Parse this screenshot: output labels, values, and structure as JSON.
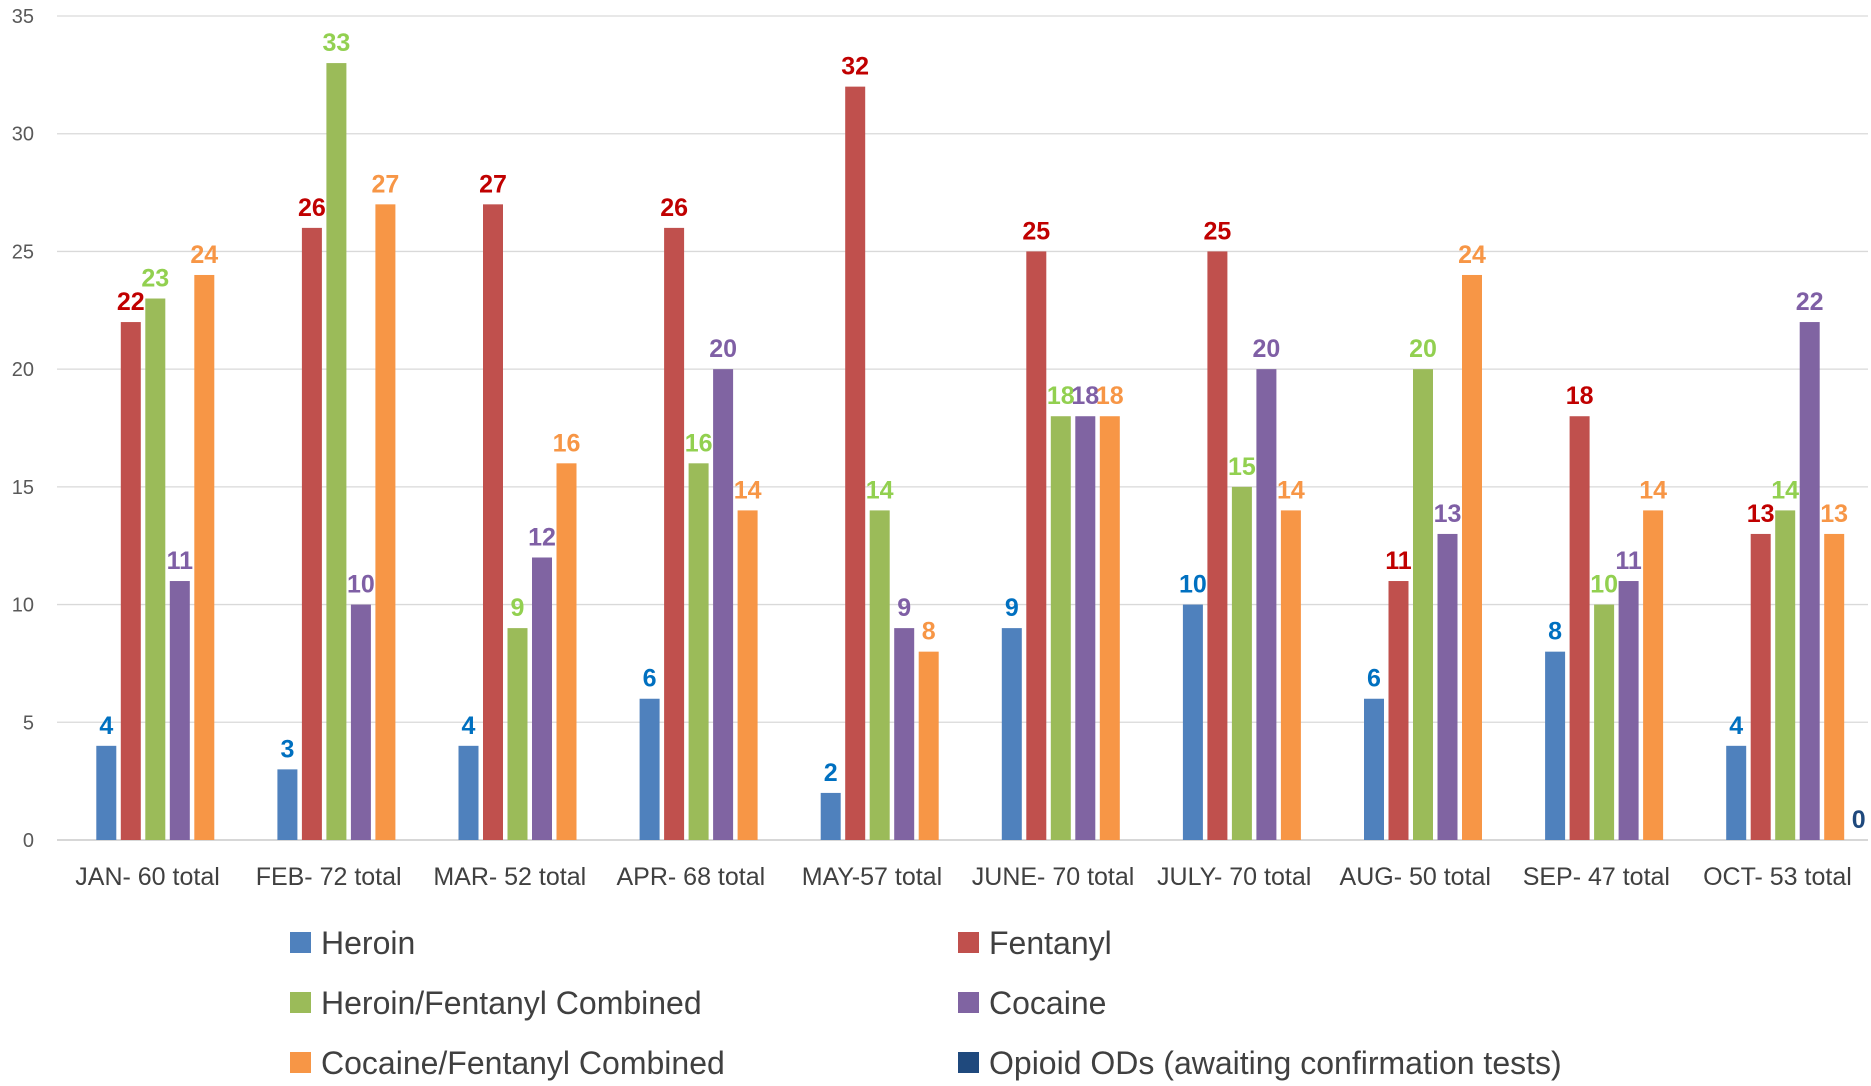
{
  "chart_data": {
    "type": "bar",
    "title": "",
    "xlabel": "",
    "ylabel": "",
    "ylim": [
      0,
      35
    ],
    "yticks": [
      0,
      5,
      10,
      15,
      20,
      25,
      30,
      35
    ],
    "grid": true,
    "legend_position": "bottom",
    "categories": [
      "JAN- 60 total",
      "FEB- 72 total",
      "MAR-  52 total",
      "APR- 68 total",
      "MAY-57 total",
      "JUNE-  70 total",
      "JULY-  70 total",
      "AUG- 50 total",
      "SEP- 47 total",
      "OCT- 53 total"
    ],
    "series": [
      {
        "name": "Heroin",
        "color": "#4F81BD",
        "label_color": "#0070C0",
        "values": [
          4,
          3,
          4,
          6,
          2,
          9,
          10,
          6,
          8,
          4
        ]
      },
      {
        "name": "Fentanyl",
        "color": "#C0504D",
        "label_color": "#C00000",
        "values": [
          22,
          26,
          27,
          26,
          32,
          25,
          25,
          11,
          18,
          13
        ]
      },
      {
        "name": "Heroin/Fentanyl Combined",
        "color": "#9BBB59",
        "label_color": "#92D050",
        "values": [
          23,
          33,
          9,
          16,
          14,
          18,
          15,
          20,
          10,
          14
        ]
      },
      {
        "name": "Cocaine",
        "color": "#8064A2",
        "label_color": "#7F5FA5",
        "values": [
          11,
          10,
          12,
          20,
          9,
          18,
          20,
          13,
          11,
          22
        ]
      },
      {
        "name": "Cocaine/Fentanyl Combined",
        "color": "#F79646",
        "label_color": "#F79646",
        "values": [
          24,
          27,
          16,
          14,
          8,
          18,
          14,
          24,
          14,
          13
        ]
      },
      {
        "name": "Opioid ODs (awaiting confirmation tests)",
        "color": "#1F497D",
        "label_color": "#1F497D",
        "values": [
          null,
          null,
          null,
          null,
          null,
          null,
          null,
          null,
          null,
          0
        ]
      }
    ]
  }
}
